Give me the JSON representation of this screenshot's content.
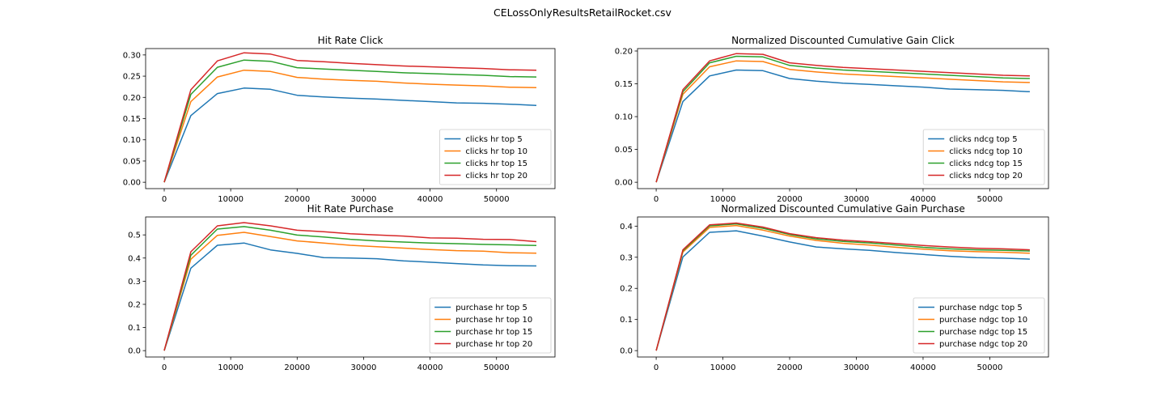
{
  "suptitle": "CELossOnlyResultsRetailRocket.csv",
  "colors": [
    "#1f77b4",
    "#ff7f0e",
    "#2ca02c",
    "#d62728"
  ],
  "chart_data": [
    {
      "type": "line",
      "title": "Hit Rate Click",
      "xlabel": "",
      "ylabel": "",
      "xlim": [
        -2800,
        58800
      ],
      "ylim": [
        -0.015,
        0.315
      ],
      "xticks": [
        0,
        10000,
        20000,
        30000,
        40000,
        50000
      ],
      "yticks": [
        0.0,
        0.05,
        0.1,
        0.15,
        0.2,
        0.25,
        0.3
      ],
      "ytick_decimals": 2,
      "grid": false,
      "legend_position": "lower right",
      "x": [
        0,
        4000,
        8000,
        12000,
        16000,
        20000,
        24000,
        28000,
        32000,
        36000,
        40000,
        44000,
        48000,
        52000,
        56000
      ],
      "series": [
        {
          "name": "clicks hr top 5",
          "values": [
            0.0,
            0.157,
            0.209,
            0.222,
            0.219,
            0.205,
            0.201,
            0.198,
            0.196,
            0.193,
            0.19,
            0.187,
            0.186,
            0.184,
            0.181
          ]
        },
        {
          "name": "clicks hr top 10",
          "values": [
            0.0,
            0.19,
            0.248,
            0.264,
            0.261,
            0.247,
            0.243,
            0.24,
            0.238,
            0.234,
            0.231,
            0.229,
            0.227,
            0.224,
            0.223
          ]
        },
        {
          "name": "clicks hr top 15",
          "values": [
            0.0,
            0.207,
            0.271,
            0.288,
            0.285,
            0.27,
            0.267,
            0.264,
            0.261,
            0.258,
            0.256,
            0.254,
            0.252,
            0.249,
            0.248
          ]
        },
        {
          "name": "clicks hr top 20",
          "values": [
            0.0,
            0.218,
            0.286,
            0.305,
            0.302,
            0.287,
            0.284,
            0.28,
            0.277,
            0.274,
            0.272,
            0.27,
            0.268,
            0.265,
            0.264
          ]
        }
      ]
    },
    {
      "type": "line",
      "title": "Normalized Discounted Cumulative Gain Click",
      "xlabel": "",
      "ylabel": "",
      "xlim": [
        -2800,
        58800
      ],
      "ylim": [
        -0.0097,
        0.2037
      ],
      "xticks": [
        0,
        10000,
        20000,
        30000,
        40000,
        50000
      ],
      "yticks": [
        0.0,
        0.05,
        0.1,
        0.15,
        0.2
      ],
      "ytick_decimals": 2,
      "grid": false,
      "legend_position": "lower right",
      "x": [
        0,
        4000,
        8000,
        12000,
        16000,
        20000,
        24000,
        28000,
        32000,
        36000,
        40000,
        44000,
        48000,
        52000,
        56000
      ],
      "series": [
        {
          "name": "clicks ndcg top 5",
          "values": [
            0.0,
            0.123,
            0.162,
            0.171,
            0.17,
            0.158,
            0.154,
            0.151,
            0.149,
            0.147,
            0.145,
            0.142,
            0.141,
            0.14,
            0.138
          ]
        },
        {
          "name": "clicks ndcg top 10",
          "values": [
            0.0,
            0.134,
            0.176,
            0.185,
            0.184,
            0.172,
            0.168,
            0.165,
            0.163,
            0.161,
            0.159,
            0.157,
            0.155,
            0.153,
            0.152
          ]
        },
        {
          "name": "clicks ndcg top 15",
          "values": [
            0.0,
            0.138,
            0.182,
            0.192,
            0.191,
            0.178,
            0.174,
            0.171,
            0.169,
            0.167,
            0.165,
            0.163,
            0.161,
            0.159,
            0.158
          ]
        },
        {
          "name": "clicks ndcg top 20",
          "values": [
            0.0,
            0.141,
            0.185,
            0.196,
            0.195,
            0.182,
            0.178,
            0.175,
            0.173,
            0.171,
            0.169,
            0.167,
            0.165,
            0.163,
            0.162
          ]
        }
      ]
    },
    {
      "type": "line",
      "title": "Hit Rate Purchase",
      "xlabel": "",
      "ylabel": "",
      "xlim": [
        -2800,
        58800
      ],
      "ylim": [
        -0.0275,
        0.5775
      ],
      "xticks": [
        0,
        10000,
        20000,
        30000,
        40000,
        50000
      ],
      "yticks": [
        0.0,
        0.1,
        0.2,
        0.3,
        0.4,
        0.5
      ],
      "ytick_decimals": 1,
      "grid": false,
      "legend_position": "lower right",
      "x": [
        0,
        4000,
        8000,
        12000,
        16000,
        20000,
        24000,
        28000,
        32000,
        36000,
        40000,
        44000,
        48000,
        52000,
        56000
      ],
      "series": [
        {
          "name": "purchase hr top 5",
          "values": [
            0.0,
            0.356,
            0.455,
            0.465,
            0.435,
            0.42,
            0.402,
            0.4,
            0.397,
            0.388,
            0.382,
            0.376,
            0.37,
            0.367,
            0.366
          ]
        },
        {
          "name": "purchase hr top 10",
          "values": [
            0.0,
            0.395,
            0.498,
            0.511,
            0.493,
            0.474,
            0.465,
            0.455,
            0.449,
            0.443,
            0.437,
            0.432,
            0.43,
            0.423,
            0.421
          ]
        },
        {
          "name": "purchase hr top 15",
          "values": [
            0.0,
            0.412,
            0.525,
            0.536,
            0.52,
            0.499,
            0.491,
            0.481,
            0.474,
            0.469,
            0.465,
            0.462,
            0.459,
            0.457,
            0.454
          ]
        },
        {
          "name": "purchase hr top 20",
          "values": [
            0.0,
            0.427,
            0.539,
            0.553,
            0.539,
            0.52,
            0.514,
            0.505,
            0.5,
            0.495,
            0.487,
            0.486,
            0.481,
            0.48,
            0.471
          ]
        }
      ]
    },
    {
      "type": "line",
      "title": "Normalized Discounted Cumulative Gain Purchase",
      "xlabel": "",
      "ylabel": "",
      "xlim": [
        -2800,
        58800
      ],
      "ylim": [
        -0.0205,
        0.4295
      ],
      "xticks": [
        0,
        10000,
        20000,
        30000,
        40000,
        50000
      ],
      "yticks": [
        0.0,
        0.1,
        0.2,
        0.3,
        0.4
      ],
      "ytick_decimals": 1,
      "grid": false,
      "legend_position": "lower right",
      "x": [
        0,
        4000,
        8000,
        12000,
        16000,
        20000,
        24000,
        28000,
        32000,
        36000,
        40000,
        44000,
        48000,
        52000,
        56000
      ],
      "series": [
        {
          "name": "purchase ndgc top 5",
          "values": [
            0.0,
            0.301,
            0.38,
            0.385,
            0.368,
            0.349,
            0.333,
            0.327,
            0.322,
            0.315,
            0.309,
            0.303,
            0.299,
            0.297,
            0.294
          ]
        },
        {
          "name": "purchase ndgc top 10",
          "values": [
            0.0,
            0.317,
            0.396,
            0.402,
            0.387,
            0.368,
            0.354,
            0.345,
            0.339,
            0.332,
            0.326,
            0.321,
            0.318,
            0.316,
            0.313
          ]
        },
        {
          "name": "purchase ndgc top 15",
          "values": [
            0.0,
            0.321,
            0.401,
            0.407,
            0.393,
            0.373,
            0.359,
            0.351,
            0.346,
            0.339,
            0.332,
            0.327,
            0.324,
            0.322,
            0.32
          ]
        },
        {
          "name": "purchase ndgc top 20",
          "values": [
            0.0,
            0.324,
            0.404,
            0.41,
            0.397,
            0.376,
            0.363,
            0.355,
            0.35,
            0.344,
            0.338,
            0.333,
            0.329,
            0.327,
            0.324
          ]
        }
      ]
    }
  ]
}
